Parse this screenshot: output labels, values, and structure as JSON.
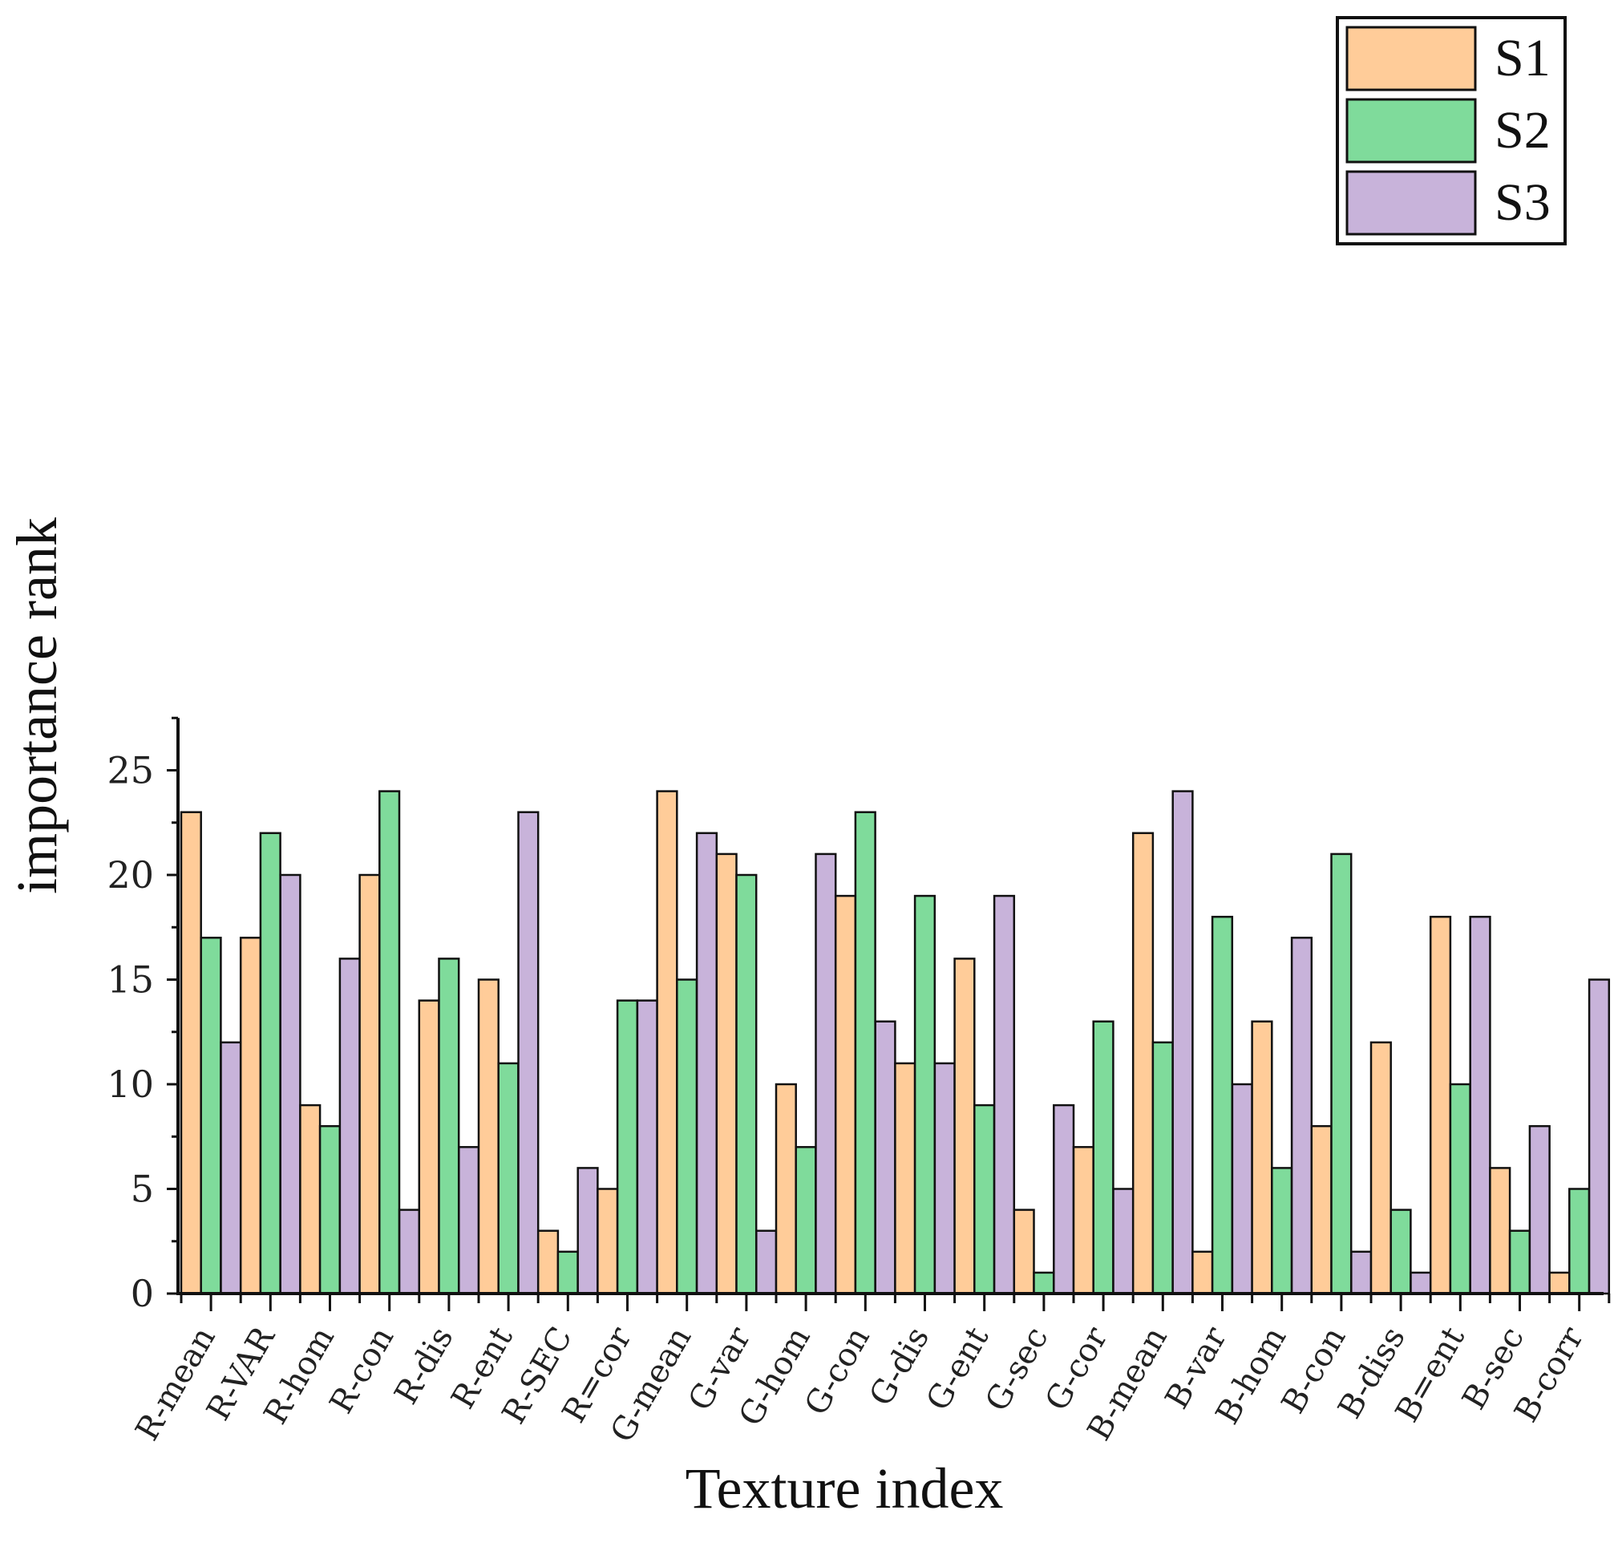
{
  "chart_data": {
    "type": "bar",
    "title": "",
    "xlabel": "Texture index",
    "ylabel": "importance rank",
    "ylim": [
      0,
      27.5
    ],
    "yticks": [
      0,
      5,
      10,
      15,
      20,
      25
    ],
    "grid": false,
    "legend_position": "top-right",
    "categories": [
      "R-mean",
      "R-VAR",
      "R-hom",
      "R-con",
      "R-dis",
      "R-ent",
      "R-SEC",
      "R=cor",
      "G-mean",
      "G-var",
      "G-hom",
      "G-con",
      "G-dis",
      "G-ent",
      "G-sec",
      "G-cor",
      "B-mean",
      "B-var",
      "B-hom",
      "B-con",
      "B-diss",
      "B=ent",
      "B-sec",
      "B-corr"
    ],
    "series": [
      {
        "name": "S1",
        "color": "#FFCC99",
        "values": [
          23,
          17,
          9,
          20,
          14,
          15,
          3,
          5,
          24,
          21,
          10,
          19,
          11,
          16,
          4,
          7,
          22,
          2,
          13,
          8,
          12,
          18,
          6,
          1
        ]
      },
      {
        "name": "S2",
        "color": "#7FDB9B",
        "values": [
          17,
          22,
          8,
          24,
          16,
          11,
          2,
          14,
          15,
          20,
          7,
          23,
          19,
          9,
          1,
          13,
          12,
          18,
          6,
          21,
          4,
          10,
          3,
          5
        ]
      },
      {
        "name": "S3",
        "color": "#C8B3DA",
        "values": [
          12,
          20,
          16,
          4,
          7,
          23,
          6,
          14,
          22,
          3,
          21,
          13,
          11,
          19,
          9,
          5,
          24,
          10,
          17,
          2,
          1,
          18,
          8,
          15
        ]
      }
    ]
  }
}
